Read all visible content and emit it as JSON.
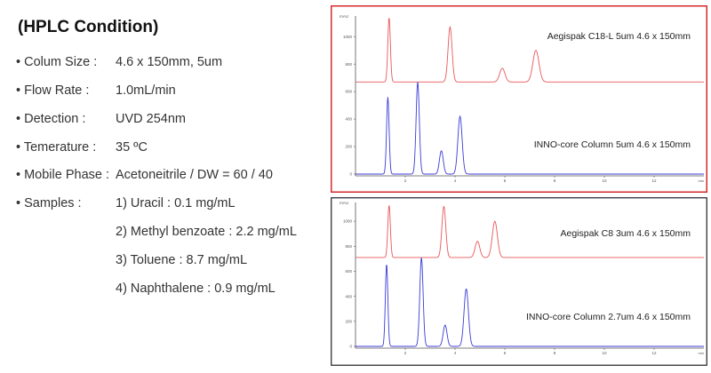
{
  "title": "(HPLC Condition)",
  "conditions": [
    {
      "label": "• Colum Size :",
      "value": "4.6 x 150mm, 5um"
    },
    {
      "label": "• Flow Rate :",
      "value": "1.0mL/min"
    },
    {
      "label": "• Detection :",
      "value": "UVD 254nm"
    },
    {
      "label": "• Temerature :",
      "value": "35 ºC"
    },
    {
      "label": "• Mobile Phase :",
      "value": "Acetoneitrile / DW = 60 / 40"
    },
    {
      "label": "• Samples :",
      "value": "1) Uracil : 0.1 mg/mL"
    }
  ],
  "samples_more": [
    "2) Methyl benzoate : 2.2 mg/mL",
    "3) Toluene : 8.7 mg/mL",
    "4) Naphthalene : 0.9 mg/mL"
  ],
  "colors": {
    "red": "#e8575a",
    "blue": "#3b3bd8",
    "panel1_border": "#d42b2b",
    "panel2_border": "#222222",
    "axis": "#555555"
  },
  "chart_data": [
    {
      "type": "line",
      "ylabel": "mAU",
      "xlabel": "min",
      "ylim": [
        0,
        1150
      ],
      "xlim": [
        0,
        14
      ],
      "yticks": [
        0,
        200,
        400,
        600,
        800,
        1000
      ],
      "xticks": [
        2,
        4,
        6,
        8,
        10,
        12
      ],
      "ytick_labels": [
        "0",
        "200",
        "400",
        "600",
        "800",
        "1000"
      ],
      "xtick_labels": [
        "2",
        "4",
        "6",
        "8",
        "10",
        "12"
      ],
      "series": [
        {
          "name": "Aegispak C18-L 5um 4.6 x 150mm",
          "color": "red",
          "baseline": 670,
          "peaks": [
            {
              "t": 1.35,
              "h": 470
            },
            {
              "t": 3.8,
              "h": 400
            },
            {
              "t": 5.9,
              "h": 100
            },
            {
              "t": 7.25,
              "h": 230
            }
          ]
        },
        {
          "name": "INNO-core Column 5um 4.6 x 150mm",
          "color": "blue",
          "baseline": 0,
          "peaks": [
            {
              "t": 1.3,
              "h": 560
            },
            {
              "t": 2.5,
              "h": 670
            },
            {
              "t": 3.45,
              "h": 170
            },
            {
              "t": 4.2,
              "h": 420
            }
          ]
        }
      ]
    },
    {
      "type": "line",
      "ylabel": "mAU",
      "xlabel": "min",
      "ylim": [
        0,
        1150
      ],
      "xlim": [
        0,
        14
      ],
      "yticks": [
        0,
        200,
        400,
        600,
        800,
        1000
      ],
      "xticks": [
        2,
        4,
        6,
        8,
        10,
        12
      ],
      "ytick_labels": [
        "0",
        "200",
        "400",
        "600",
        "800",
        "1000"
      ],
      "xtick_labels": [
        "2",
        "4",
        "6",
        "8",
        "10",
        "12"
      ],
      "series": [
        {
          "name": "Aegispak C8 3um 4.6 x 150mm",
          "color": "red",
          "baseline": 710,
          "peaks": [
            {
              "t": 1.35,
              "h": 420
            },
            {
              "t": 3.55,
              "h": 410
            },
            {
              "t": 4.9,
              "h": 130
            },
            {
              "t": 5.6,
              "h": 290
            }
          ]
        },
        {
          "name": "INNO-core Column 2.7um 4.6 x 150mm",
          "color": "blue",
          "baseline": 0,
          "peaks": [
            {
              "t": 1.25,
              "h": 660
            },
            {
              "t": 2.65,
              "h": 710
            },
            {
              "t": 3.6,
              "h": 170
            },
            {
              "t": 4.45,
              "h": 460
            }
          ]
        }
      ]
    }
  ]
}
